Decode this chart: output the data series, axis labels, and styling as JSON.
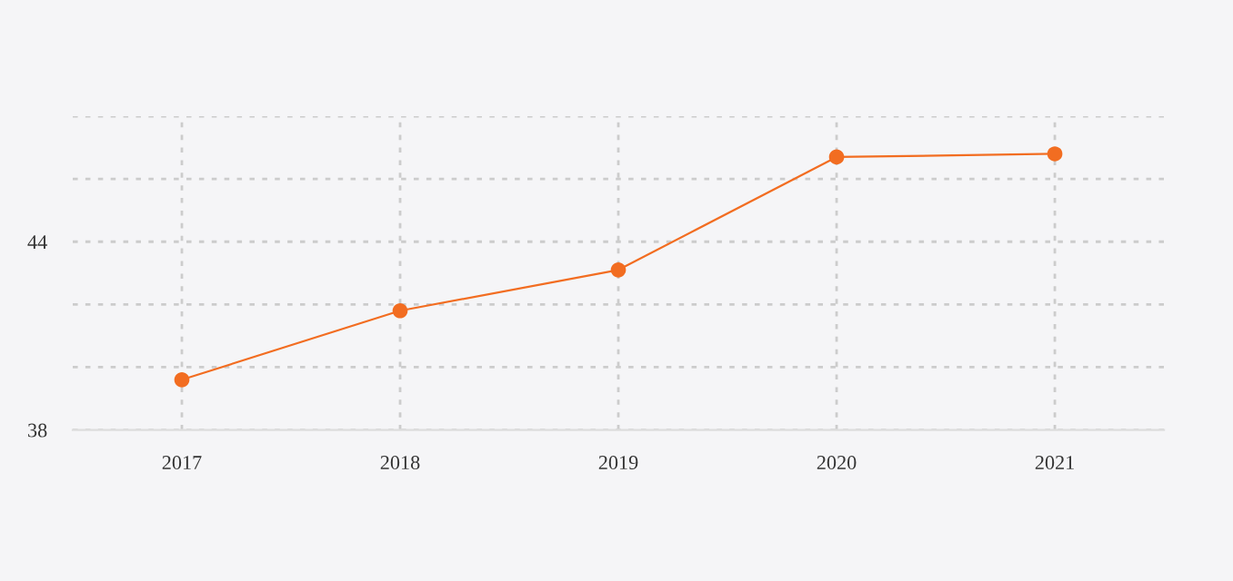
{
  "chart_data": {
    "type": "line",
    "categories": [
      "2017",
      "2018",
      "2019",
      "2020",
      "2021"
    ],
    "series": [
      {
        "color": "#f26d21",
        "values": [
          39.6,
          41.8,
          43.1,
          46.7,
          46.8
        ]
      }
    ],
    "ylim": [
      38,
      48
    ],
    "yticks": [
      38,
      {
        "value": 40,
        "label": null
      },
      {
        "value": 42,
        "label": null
      },
      44,
      {
        "value": 46,
        "label": null
      },
      {
        "value": 48,
        "label": null
      }
    ],
    "grid": true,
    "marker": "circle",
    "line_style": "solid",
    "legend": false
  }
}
